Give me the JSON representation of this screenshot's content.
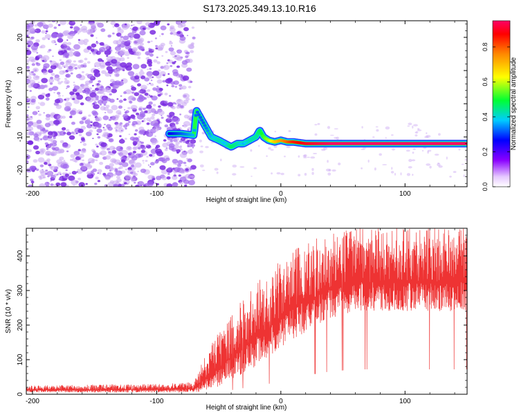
{
  "title": "S173.2025.349.13.10.R16",
  "colors": {
    "signal": "#ee3333",
    "speckle": "#7a2be0",
    "speckle_light": "#c9a6f2",
    "axis": "#000000"
  },
  "colorbar": {
    "label": "Normalized spectral amplitude",
    "ticks": [
      "0.0",
      "0.2",
      "0.4",
      "0.6",
      "0.8"
    ],
    "tick_values": [
      0.0,
      0.2,
      0.4,
      0.6,
      0.8
    ],
    "range": [
      0,
      0.95
    ]
  },
  "chart_data": [
    {
      "type": "heatmap",
      "title": "S173.2025.349.13.10.R16",
      "xlabel": "Height of straight line (km)",
      "ylabel": "Frequency (Hz)",
      "xlim": [
        -205,
        150
      ],
      "ylim": [
        -25,
        25
      ],
      "x_ticks": [
        -200,
        -100,
        0,
        100
      ],
      "x_tick_labels": [
        "-200",
        "-100",
        "0",
        "100"
      ],
      "y_ticks": [
        -20,
        -10,
        0,
        10,
        20
      ],
      "y_tick_labels": [
        "-20",
        "-10",
        "0",
        "10",
        "20"
      ],
      "noise_region_x": [
        -205,
        -70
      ],
      "ridge": {
        "x": [
          -90,
          -80,
          -70,
          -68,
          -62,
          -56,
          -50,
          -45,
          -40,
          -35,
          -30,
          -25,
          -20,
          -17,
          -14,
          -10,
          -5,
          0,
          5,
          10,
          20,
          40,
          60,
          80,
          100,
          120,
          150
        ],
        "freq": [
          -9,
          -9,
          -9.5,
          -2,
          -6,
          -10,
          -11,
          -12,
          -13,
          -12,
          -12,
          -11,
          -10,
          -8,
          -10,
          -11,
          -11.5,
          -11,
          -11.5,
          -11.5,
          -12,
          -12,
          -12,
          -12,
          -12,
          -12,
          -12
        ],
        "amplitude": [
          0.25,
          0.3,
          0.35,
          0.3,
          0.3,
          0.35,
          0.4,
          0.35,
          0.45,
          0.4,
          0.35,
          0.4,
          0.4,
          0.45,
          0.5,
          0.55,
          0.65,
          0.7,
          0.75,
          0.8,
          0.85,
          0.9,
          0.9,
          0.9,
          0.9,
          0.9,
          0.9
        ]
      }
    },
    {
      "type": "line",
      "xlabel": "Height of straight line (km)",
      "ylabel": "SNR (10 * v/v)",
      "xlim": [
        -205,
        150
      ],
      "ylim": [
        0,
        480
      ],
      "x_ticks": [
        -200,
        -100,
        0,
        100
      ],
      "x_tick_labels": [
        "-200",
        "-100",
        "0",
        "100"
      ],
      "y_ticks": [
        0,
        100,
        200,
        300,
        400
      ],
      "y_tick_labels": [
        "0",
        "100",
        "200",
        "300",
        "400"
      ],
      "envelope": {
        "x": [
          -205,
          -150,
          -100,
          -70,
          -60,
          -50,
          -40,
          -30,
          -20,
          -10,
          0,
          10,
          20,
          30,
          40,
          50,
          60,
          80,
          100,
          120,
          150
        ],
        "lower": [
          5,
          5,
          5,
          5,
          10,
          20,
          40,
          60,
          80,
          100,
          130,
          160,
          180,
          200,
          220,
          230,
          240,
          240,
          240,
          240,
          240
        ],
        "upper": [
          25,
          28,
          30,
          35,
          120,
          180,
          230,
          280,
          320,
          360,
          390,
          420,
          440,
          460,
          470,
          475,
          480,
          480,
          480,
          480,
          480
        ]
      }
    }
  ]
}
